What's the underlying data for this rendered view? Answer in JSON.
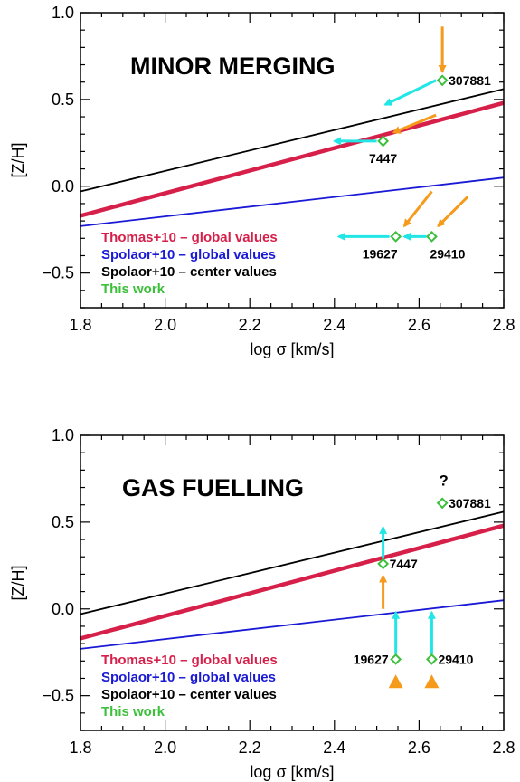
{
  "colors": {
    "thomas": "#d6204a",
    "spolaor_global": "#1a1ad6",
    "spolaor_center": "#000000",
    "this_work": "#3cc03c",
    "cyan_arrow": "#22e6e6",
    "orange_arrow": "#f59a1a"
  },
  "chart_data": [
    {
      "type": "line",
      "title": "MINOR MERGING",
      "xlabel": "log σ [km/s]",
      "ylabel": "[Z/H]",
      "xlim": [
        1.8,
        2.8
      ],
      "ylim": [
        -0.7,
        1.0
      ],
      "xticks": [
        {
          "value": 1.8,
          "label": "1.8"
        },
        {
          "value": 2.0,
          "label": "2.0"
        },
        {
          "value": 2.2,
          "label": "2.2"
        },
        {
          "value": 2.4,
          "label": "2.4"
        },
        {
          "value": 2.6,
          "label": "2.6"
        },
        {
          "value": 2.8,
          "label": "2.8"
        }
      ],
      "yticks": [
        {
          "value": 1.0,
          "label": "1.0"
        },
        {
          "value": 0.5,
          "label": "0.5"
        },
        {
          "value": 0.0,
          "label": "0.0"
        },
        {
          "value": -0.5,
          "label": "−0.5"
        }
      ],
      "grid": false,
      "legend_position": "bottom-left",
      "series": [
        {
          "name": "Thomas+10 – global values",
          "color_key": "thomas",
          "x": [
            1.8,
            2.8
          ],
          "y": [
            -0.17,
            0.48
          ],
          "width": "thick"
        },
        {
          "name": "Spolaor+10 – global values",
          "color_key": "spolaor_global",
          "x": [
            1.8,
            2.8
          ],
          "y": [
            -0.23,
            0.05
          ],
          "width": "thin"
        },
        {
          "name": "Spolaor+10 – center values",
          "color_key": "spolaor_center",
          "x": [
            1.8,
            2.8
          ],
          "y": [
            -0.03,
            0.56
          ],
          "width": "thin"
        },
        {
          "name": "This work",
          "color_key": "this_work",
          "x": [],
          "y": [],
          "width": "none"
        }
      ],
      "points": [
        {
          "label": "307881",
          "x": 2.655,
          "y": 0.61,
          "label_side": "right"
        },
        {
          "label": "7447",
          "x": 2.515,
          "y": 0.26,
          "label_side": "below"
        },
        {
          "label": "19627",
          "x": 2.545,
          "y": -0.29,
          "label_side": "below-left"
        },
        {
          "label": "29410",
          "x": 2.63,
          "y": -0.29,
          "label_side": "below-right"
        }
      ],
      "arrows": [
        {
          "color_key": "orange_arrow",
          "from": [
            2.655,
            0.92
          ],
          "to": [
            2.655,
            0.66
          ]
        },
        {
          "color_key": "cyan_arrow",
          "from": [
            2.64,
            0.61
          ],
          "to": [
            2.52,
            0.47
          ]
        },
        {
          "color_key": "orange_arrow",
          "from": [
            2.64,
            0.41
          ],
          "to": [
            2.54,
            0.31
          ]
        },
        {
          "color_key": "cyan_arrow",
          "from": [
            2.5,
            0.26
          ],
          "to": [
            2.4,
            0.26
          ]
        },
        {
          "color_key": "orange_arrow",
          "from": [
            2.63,
            -0.03
          ],
          "to": [
            2.565,
            -0.23
          ]
        },
        {
          "color_key": "orange_arrow",
          "from": [
            2.715,
            -0.06
          ],
          "to": [
            2.645,
            -0.23
          ]
        },
        {
          "color_key": "cyan_arrow",
          "from": [
            2.53,
            -0.29
          ],
          "to": [
            2.41,
            -0.29
          ]
        },
        {
          "color_key": "cyan_arrow",
          "from": [
            2.617,
            -0.29
          ],
          "to": [
            2.565,
            -0.29
          ]
        }
      ],
      "triangles": [],
      "annotations": []
    },
    {
      "type": "line",
      "title": "GAS FUELLING",
      "xlabel": "log σ [km/s]",
      "ylabel": "[Z/H]",
      "xlim": [
        1.8,
        2.8
      ],
      "ylim": [
        -0.7,
        1.0
      ],
      "xticks": [
        {
          "value": 1.8,
          "label": "1.8"
        },
        {
          "value": 2.0,
          "label": "2.0"
        },
        {
          "value": 2.2,
          "label": "2.2"
        },
        {
          "value": 2.4,
          "label": "2.4"
        },
        {
          "value": 2.6,
          "label": "2.6"
        },
        {
          "value": 2.8,
          "label": "2.8"
        }
      ],
      "yticks": [
        {
          "value": 1.0,
          "label": "1.0"
        },
        {
          "value": 0.5,
          "label": "0.5"
        },
        {
          "value": 0.0,
          "label": "0.0"
        },
        {
          "value": -0.5,
          "label": "−0.5"
        }
      ],
      "grid": false,
      "legend_position": "bottom-left",
      "series": [
        {
          "name": "Thomas+10 – global values",
          "color_key": "thomas",
          "x": [
            1.8,
            2.8
          ],
          "y": [
            -0.17,
            0.48
          ],
          "width": "thick"
        },
        {
          "name": "Spolaor+10 – global values",
          "color_key": "spolaor_global",
          "x": [
            1.8,
            2.8
          ],
          "y": [
            -0.23,
            0.05
          ],
          "width": "thin"
        },
        {
          "name": "Spolaor+10 – center values",
          "color_key": "spolaor_center",
          "x": [
            1.8,
            2.8
          ],
          "y": [
            -0.03,
            0.56
          ],
          "width": "thin"
        },
        {
          "name": "This work",
          "color_key": "this_work",
          "x": [],
          "y": [],
          "width": "none"
        }
      ],
      "points": [
        {
          "label": "307881",
          "x": 2.655,
          "y": 0.61,
          "label_side": "right"
        },
        {
          "label": "7447",
          "x": 2.515,
          "y": 0.26,
          "label_side": "right"
        },
        {
          "label": "19627",
          "x": 2.545,
          "y": -0.29,
          "label_side": "left"
        },
        {
          "label": "29410",
          "x": 2.63,
          "y": -0.29,
          "label_side": "right"
        }
      ],
      "arrows": [
        {
          "color_key": "cyan_arrow",
          "from": [
            2.515,
            0.29
          ],
          "to": [
            2.515,
            0.47
          ]
        },
        {
          "color_key": "orange_arrow",
          "from": [
            2.515,
            0.0
          ],
          "to": [
            2.515,
            0.19
          ]
        },
        {
          "color_key": "cyan_arrow",
          "from": [
            2.545,
            -0.26
          ],
          "to": [
            2.545,
            -0.02
          ]
        },
        {
          "color_key": "cyan_arrow",
          "from": [
            2.63,
            -0.26
          ],
          "to": [
            2.63,
            -0.02
          ]
        }
      ],
      "triangles": [
        {
          "color_key": "orange_arrow",
          "x": 2.545,
          "y": -0.42
        },
        {
          "color_key": "orange_arrow",
          "x": 2.63,
          "y": -0.42
        }
      ],
      "annotations": [
        {
          "text": "?",
          "x": 2.658,
          "y": 0.71
        }
      ]
    }
  ]
}
